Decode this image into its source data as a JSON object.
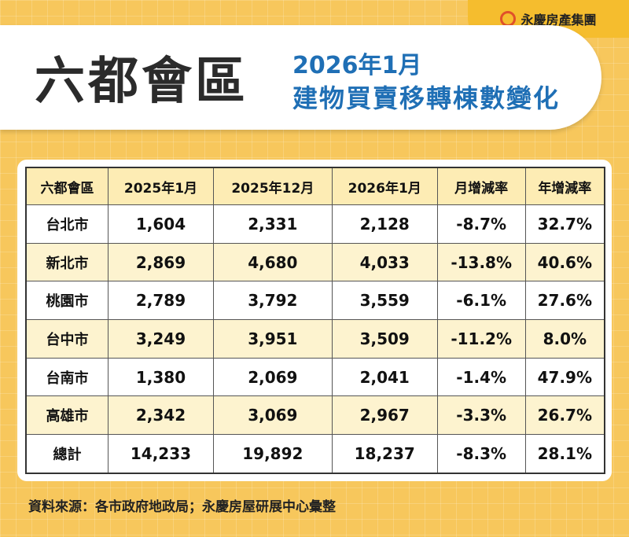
{
  "brand": "永慶房產集團",
  "header": {
    "title": "六都會區",
    "subtitle_line1": "2026年1月",
    "subtitle_line2": "建物買賣移轉棟數變化"
  },
  "table": {
    "columns": [
      "六都會區",
      "2025年1月",
      "2025年12月",
      "2026年1月",
      "月增減率",
      "年增減率"
    ],
    "rows": [
      [
        "台北市",
        "1,604",
        "2,331",
        "2,128",
        "-8.7%",
        "32.7%"
      ],
      [
        "新北市",
        "2,869",
        "4,680",
        "4,033",
        "-13.8%",
        "40.6%"
      ],
      [
        "桃園市",
        "2,789",
        "3,792",
        "3,559",
        "-6.1%",
        "27.6%"
      ],
      [
        "台中市",
        "3,249",
        "3,951",
        "3,509",
        "-11.2%",
        "8.0%"
      ],
      [
        "台南市",
        "1,380",
        "2,069",
        "2,041",
        "-1.4%",
        "47.9%"
      ],
      [
        "高雄市",
        "2,342",
        "3,069",
        "2,967",
        "-3.3%",
        "26.7%"
      ],
      [
        "總計",
        "14,233",
        "19,892",
        "18,237",
        "-8.3%",
        "28.1%"
      ]
    ]
  },
  "source": "資料來源：各市政府地政局；永慶房屋研展中心彙整"
}
